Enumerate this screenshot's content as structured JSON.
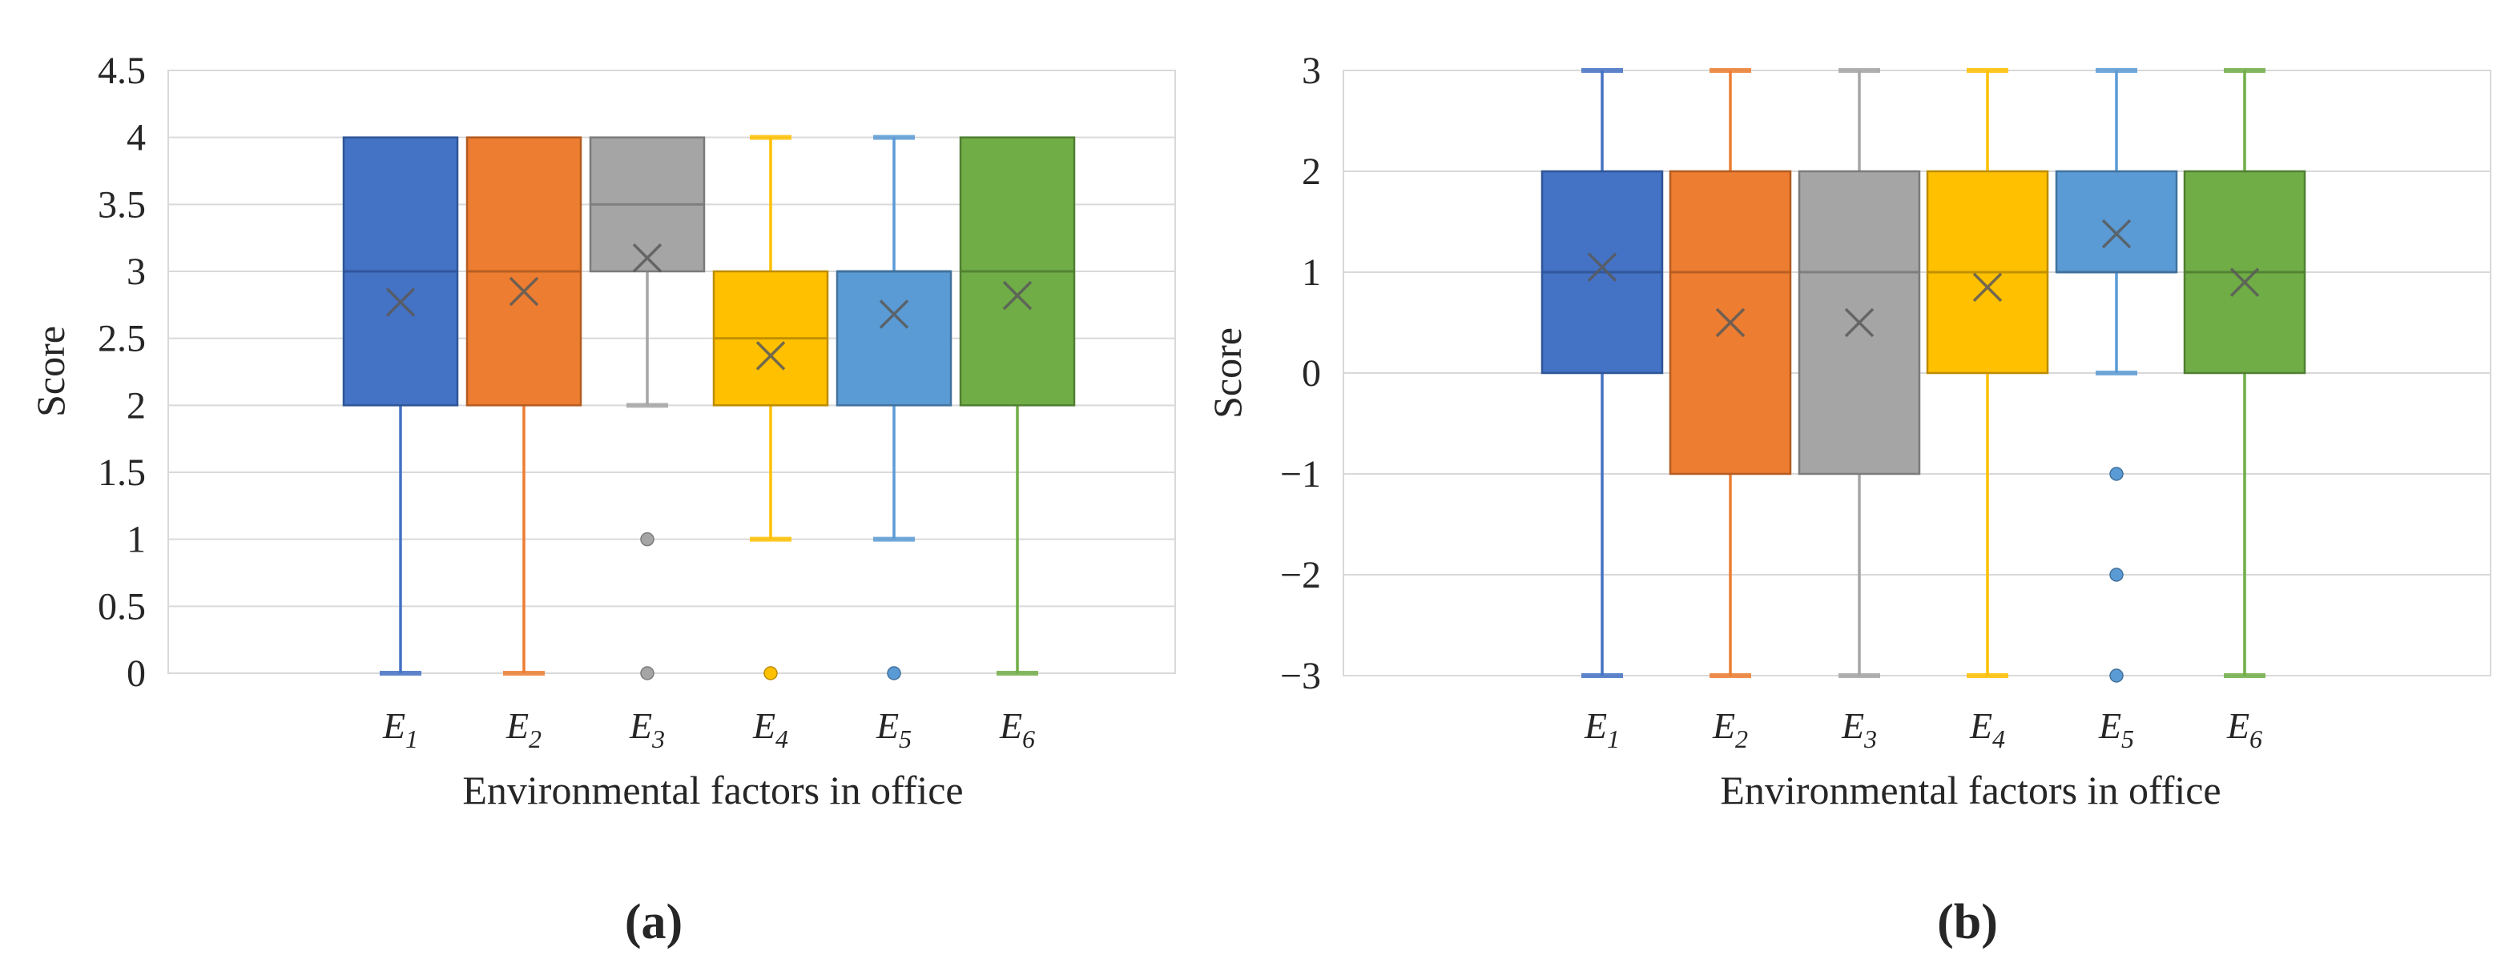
{
  "figure": {
    "description": "Two box-and-whisker charts of scores for environmental factors in office"
  },
  "colors": {
    "grid": "#D9D9D9",
    "plot_border": "#D9D9D9",
    "text": "#262626",
    "mean_marker": "#595959",
    "background": "#FFFFFF",
    "palette": {
      "blue": {
        "fill": "#4472C4",
        "line": "#2F5597"
      },
      "orange": {
        "fill": "#ED7D31",
        "line": "#B35B20"
      },
      "gray": {
        "fill": "#A5A5A5",
        "line": "#7B7B7B"
      },
      "yellow": {
        "fill": "#FFC000",
        "line": "#BC8C00"
      },
      "lightblue": {
        "fill": "#5B9BD5",
        "line": "#41719C"
      },
      "green": {
        "fill": "#70AD47",
        "line": "#507E32"
      }
    }
  },
  "chart_data": [
    {
      "id": "a",
      "type": "box",
      "caption": "(a)",
      "ylabel": "Score",
      "xlabel": "Environmental factors in office",
      "ylim": [
        0,
        4.5
      ],
      "grid": true,
      "legend": "none",
      "yticks": [
        {
          "value": 4.5,
          "label": "4.5"
        },
        {
          "value": 4,
          "label": "4"
        },
        {
          "value": 3.5,
          "label": "3.5"
        },
        {
          "value": 3,
          "label": "3"
        },
        {
          "value": 2.5,
          "label": "2.5"
        },
        {
          "value": 2,
          "label": "2"
        },
        {
          "value": 1.5,
          "label": "1.5"
        },
        {
          "value": 1,
          "label": "1"
        },
        {
          "value": 0.5,
          "label": "0.5"
        },
        {
          "value": 0,
          "label": "0"
        }
      ],
      "categories": [
        {
          "base": "E",
          "sub": "1"
        },
        {
          "base": "E",
          "sub": "2"
        },
        {
          "base": "E",
          "sub": "3"
        },
        {
          "base": "E",
          "sub": "4"
        },
        {
          "base": "E",
          "sub": "5"
        },
        {
          "base": "E",
          "sub": "6"
        }
      ],
      "boxes": [
        {
          "category": "E1",
          "color": "blue",
          "whisker_low": 0,
          "q1": 2,
          "median": 3,
          "q3": 4,
          "whisker_high": 4,
          "mean": 2.77,
          "outliers": []
        },
        {
          "category": "E2",
          "color": "orange",
          "whisker_low": 0,
          "q1": 2,
          "median": 3,
          "q3": 4,
          "whisker_high": 4,
          "mean": 2.85,
          "outliers": []
        },
        {
          "category": "E3",
          "color": "gray",
          "whisker_low": 2,
          "q1": 3,
          "median": 3.5,
          "q3": 4,
          "whisker_high": 4,
          "mean": 3.1,
          "outliers": [
            1,
            0
          ]
        },
        {
          "category": "E4",
          "color": "yellow",
          "whisker_low": 1,
          "q1": 2,
          "median": 2.5,
          "q3": 3,
          "whisker_high": 4,
          "mean": 2.37,
          "outliers": [
            0
          ]
        },
        {
          "category": "E5",
          "color": "lightblue",
          "whisker_low": 1,
          "q1": 2,
          "median": 3,
          "q3": 3,
          "whisker_high": 4,
          "mean": 2.68,
          "outliers": [
            0
          ]
        },
        {
          "category": "E6",
          "color": "green",
          "whisker_low": 0,
          "q1": 2,
          "median": 3,
          "q3": 4,
          "whisker_high": 4,
          "mean": 2.82,
          "outliers": []
        }
      ]
    },
    {
      "id": "b",
      "type": "box",
      "caption": "(b)",
      "ylabel": "Score",
      "xlabel": "Environmental factors in office",
      "ylim": [
        -3,
        3
      ],
      "grid": true,
      "legend": "none",
      "yticks": [
        {
          "value": 3,
          "label": "3"
        },
        {
          "value": 2,
          "label": "2"
        },
        {
          "value": 1,
          "label": "1"
        },
        {
          "value": 0,
          "label": "0"
        },
        {
          "value": -1,
          "label": "−1"
        },
        {
          "value": -2,
          "label": "−2"
        },
        {
          "value": -3,
          "label": "−3"
        }
      ],
      "categories": [
        {
          "base": "E",
          "sub": "1"
        },
        {
          "base": "E",
          "sub": "2"
        },
        {
          "base": "E",
          "sub": "3"
        },
        {
          "base": "E",
          "sub": "4"
        },
        {
          "base": "E",
          "sub": "5"
        },
        {
          "base": "E",
          "sub": "6"
        }
      ],
      "boxes": [
        {
          "category": "E1",
          "color": "blue",
          "whisker_low": -3,
          "q1": 0,
          "median": 1,
          "q3": 2,
          "whisker_high": 3,
          "mean": 1.05,
          "outliers": []
        },
        {
          "category": "E2",
          "color": "orange",
          "whisker_low": -3,
          "q1": -1,
          "median": 1,
          "q3": 2,
          "whisker_high": 3,
          "mean": 0.5,
          "outliers": []
        },
        {
          "category": "E3",
          "color": "gray",
          "whisker_low": -3,
          "q1": -1,
          "median": 1,
          "q3": 2,
          "whisker_high": 3,
          "mean": 0.5,
          "outliers": []
        },
        {
          "category": "E4",
          "color": "yellow",
          "whisker_low": -3,
          "q1": 0,
          "median": 1,
          "q3": 2,
          "whisker_high": 3,
          "mean": 0.85,
          "outliers": []
        },
        {
          "category": "E5",
          "color": "lightblue",
          "whisker_low": 0,
          "q1": 1,
          "median": 1,
          "q3": 2,
          "whisker_high": 3,
          "mean": 1.38,
          "outliers": [
            -1,
            -2,
            -3
          ]
        },
        {
          "category": "E6",
          "color": "green",
          "whisker_low": -3,
          "q1": 0,
          "median": 1,
          "q3": 2,
          "whisker_high": 3,
          "mean": 0.9,
          "outliers": []
        }
      ]
    }
  ]
}
